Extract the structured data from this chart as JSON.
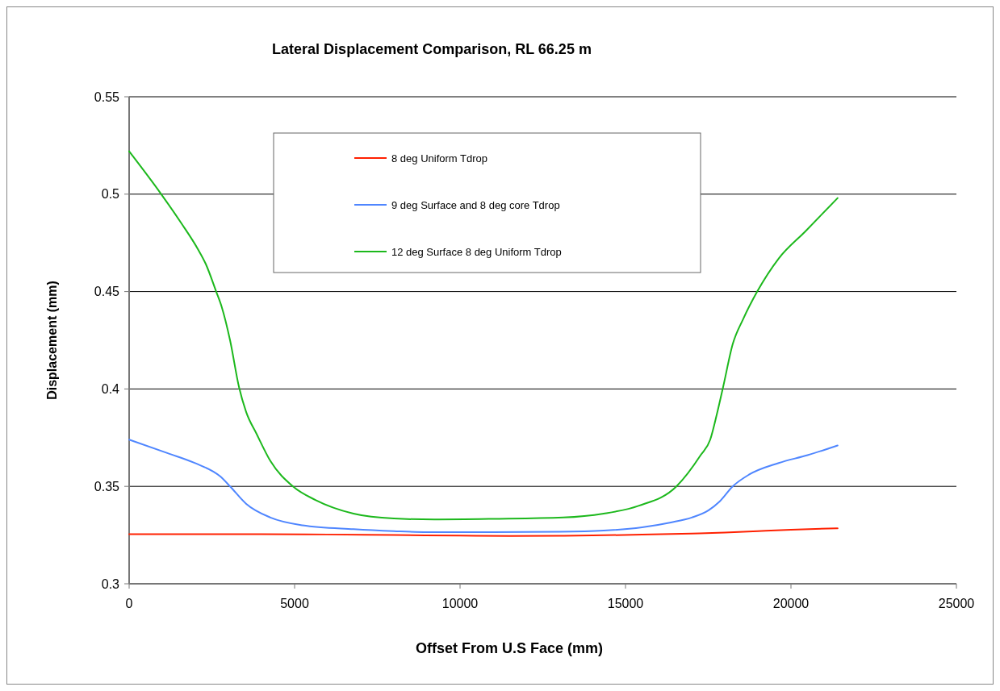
{
  "chart_data": {
    "type": "line",
    "title": "Lateral Displacement Comparison, RL 66.25 m",
    "xlabel": "Offset From U.S Face (mm)",
    "ylabel": "Displacement (mm)",
    "xlim": [
      0,
      25000
    ],
    "xticks": [
      0,
      5000,
      10000,
      15000,
      20000,
      25000
    ],
    "ylim": [
      0.3,
      0.55
    ],
    "yticks": [
      0.3,
      0.35,
      0.4,
      0.45,
      0.5,
      0.55
    ],
    "grid": "y",
    "legend": "top",
    "marker": "none",
    "line_style": "solid",
    "series": [
      {
        "name": "8 deg Uniform Tdrop",
        "color": "#ff2000",
        "x": [
          0,
          2000,
          4000,
          6000,
          8000,
          10000,
          11500,
          13000,
          14000,
          15500,
          17000,
          18000,
          19000,
          20000,
          21410
        ],
        "values": [
          0.3255,
          0.3255,
          0.3255,
          0.3253,
          0.325,
          0.3247,
          0.3245,
          0.3246,
          0.3248,
          0.3252,
          0.3258,
          0.3263,
          0.327,
          0.3277,
          0.3285
        ]
      },
      {
        "name": "9 deg Surface and 8 deg core Tdrop",
        "color": "#4f86ff",
        "x": [
          0,
          1170,
          1980,
          2760,
          3050,
          3540,
          4270,
          5240,
          6780,
          8000,
          9000,
          11000,
          13000,
          14340,
          15500,
          16370,
          17000,
          17510,
          17830,
          18240,
          18730,
          19630,
          20500,
          21410
        ],
        "values": [
          0.374,
          0.367,
          0.362,
          0.355,
          0.35,
          0.341,
          0.334,
          0.33,
          0.328,
          0.327,
          0.3265,
          0.3265,
          0.3267,
          0.3273,
          0.329,
          0.3315,
          0.334,
          0.3377,
          0.342,
          0.35,
          0.356,
          0.362,
          0.366,
          0.371
        ]
      },
      {
        "name": "12 deg Surface 8 deg Uniform Tdrop",
        "color": "#1cb81c",
        "x": [
          0,
          970,
          1580,
          2070,
          2320,
          2630,
          2800,
          3050,
          3320,
          3540,
          3850,
          4270,
          4950,
          5630,
          6780,
          8000,
          9220,
          11000,
          13120,
          14340,
          15390,
          16540,
          17270,
          17560,
          17760,
          17950,
          18240,
          18560,
          18980,
          19630,
          20440,
          21410
        ],
        "values": [
          0.522,
          0.5,
          0.485,
          0.472,
          0.464,
          0.45,
          0.442,
          0.425,
          0.401,
          0.388,
          0.377,
          0.363,
          0.35,
          0.343,
          0.336,
          0.3335,
          0.333,
          0.3333,
          0.334,
          0.336,
          0.34,
          0.35,
          0.366,
          0.374,
          0.387,
          0.401,
          0.423,
          0.436,
          0.45,
          0.467,
          0.481,
          0.498
        ]
      }
    ]
  }
}
